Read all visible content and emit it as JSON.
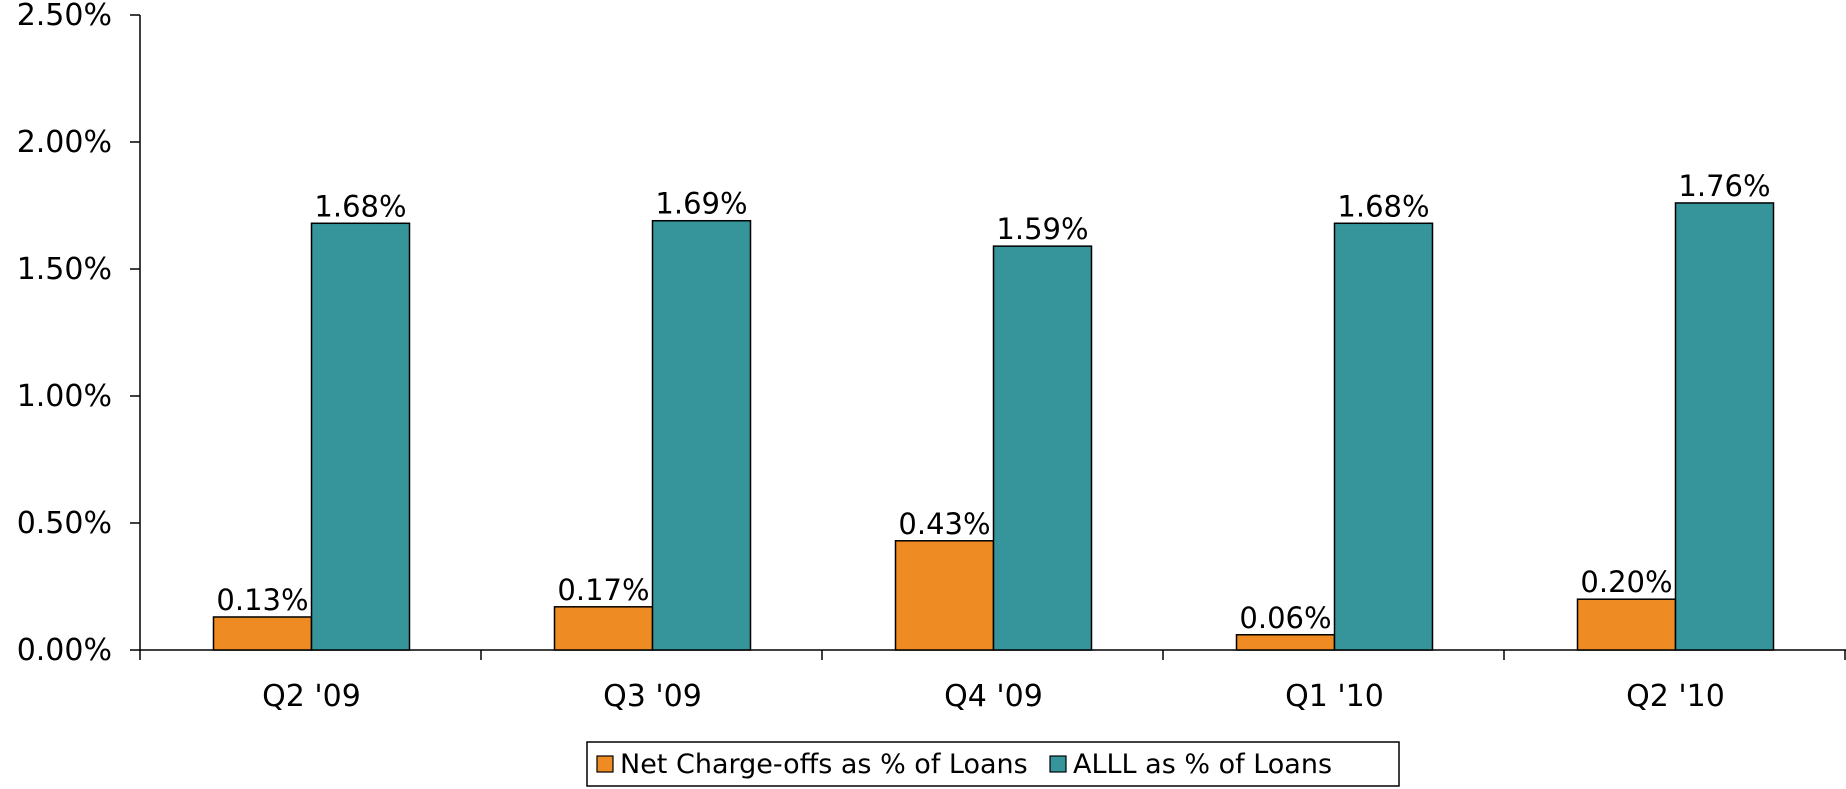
{
  "chart_data": {
    "type": "bar",
    "categories": [
      "Q2 '09",
      "Q3 '09",
      "Q4 '09",
      "Q1 '10",
      "Q2 '10"
    ],
    "series": [
      {
        "name": "Net Charge-offs as % of Loans",
        "color": "#ee8b22",
        "values": [
          0.13,
          0.17,
          0.43,
          0.06,
          0.2
        ],
        "labels": [
          "0.13%",
          "0.17%",
          "0.43%",
          "0.06%",
          "0.20%"
        ]
      },
      {
        "name": "ALLL as % of Loans",
        "color": "#36949b",
        "values": [
          1.68,
          1.69,
          1.59,
          1.68,
          1.76
        ],
        "labels": [
          "1.68%",
          "1.69%",
          "1.59%",
          "1.68%",
          "1.76%"
        ]
      }
    ],
    "yticks": [
      0,
      0.5,
      1.0,
      1.5,
      2.0,
      2.5
    ],
    "ytick_labels": [
      "0.00%",
      "0.50%",
      "1.00%",
      "1.50%",
      "2.00%",
      "2.50%"
    ],
    "ylim": [
      0,
      2.5
    ],
    "legend_position": "bottom",
    "grid": false
  }
}
